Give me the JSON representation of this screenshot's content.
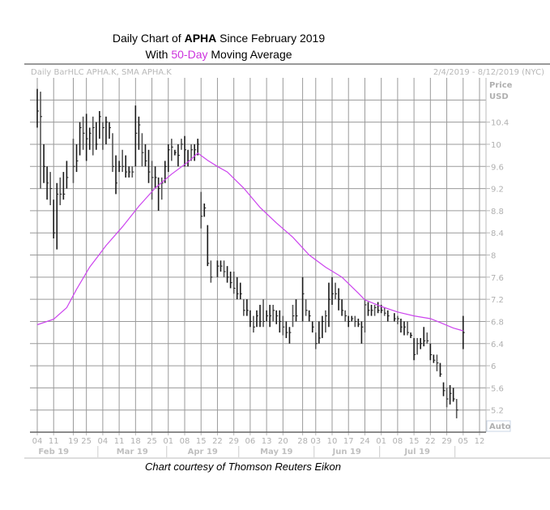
{
  "title": {
    "line1_prefix": "Daily Chart of ",
    "line1_bold": "APHA",
    "line1_suffix": " Since February 2019",
    "line2_prefix": "With ",
    "line2_highlight": "50-Day",
    "line2_suffix": " Moving Average"
  },
  "caption": "Chart courtesy of Thomson Reuters Eikon",
  "colors": {
    "bars": "#1a1a1a",
    "sma": "#cc44ee",
    "grid": "#a0a0a0",
    "axis_text": "#b0b0b0",
    "title_highlight": "#cc33dd"
  },
  "chart_data": {
    "type": "bar-hlc",
    "header_left": "Daily BarHLC APHA.K, SMA APHA.K",
    "header_right": "2/4/2019 - 8/12/2019 (NYC)",
    "ylabel_line1": "Price",
    "ylabel_line2": "USD",
    "auto_label": "Auto",
    "ylim": [
      4.8,
      11.2
    ],
    "yticks": [
      "10.4",
      "10",
      "9.6",
      "9.2",
      "8.8",
      "8.4",
      "8",
      "7.6",
      "7.2",
      "6.8",
      "6.4",
      "6",
      "5.6",
      "5.2"
    ],
    "grid": true,
    "xticks": [
      {
        "date": "2019-02-04",
        "label": "04"
      },
      {
        "date": "2019-02-11",
        "label": "11"
      },
      {
        "date": "2019-02-19",
        "label": "19"
      },
      {
        "date": "2019-02-25",
        "label": "25"
      },
      {
        "date": "2019-03-04",
        "label": "04"
      },
      {
        "date": "2019-03-11",
        "label": "11"
      },
      {
        "date": "2019-03-18",
        "label": "18"
      },
      {
        "date": "2019-03-25",
        "label": "25"
      },
      {
        "date": "2019-04-01",
        "label": "01"
      },
      {
        "date": "2019-04-08",
        "label": "08"
      },
      {
        "date": "2019-04-15",
        "label": "15"
      },
      {
        "date": "2019-04-22",
        "label": "22"
      },
      {
        "date": "2019-04-29",
        "label": "29"
      },
      {
        "date": "2019-05-06",
        "label": "06"
      },
      {
        "date": "2019-05-13",
        "label": "13"
      },
      {
        "date": "2019-05-20",
        "label": "20"
      },
      {
        "date": "2019-05-28",
        "label": "28"
      },
      {
        "date": "2019-06-03",
        "label": "03"
      },
      {
        "date": "2019-06-10",
        "label": "10"
      },
      {
        "date": "2019-06-17",
        "label": "17"
      },
      {
        "date": "2019-06-24",
        "label": "24"
      },
      {
        "date": "2019-07-01",
        "label": "01"
      },
      {
        "date": "2019-07-08",
        "label": "08"
      },
      {
        "date": "2019-07-15",
        "label": "15"
      },
      {
        "date": "2019-07-22",
        "label": "22"
      },
      {
        "date": "2019-07-29",
        "label": "29"
      },
      {
        "date": "2019-08-05",
        "label": "05"
      },
      {
        "date": "2019-08-12",
        "label": "12"
      }
    ],
    "months": [
      {
        "label": "Feb 19",
        "start": "2019-02-01",
        "end": "2019-03-01"
      },
      {
        "label": "Mar 19",
        "start": "2019-03-01",
        "end": "2019-04-01"
      },
      {
        "label": "Apr 19",
        "start": "2019-04-01",
        "end": "2019-05-01"
      },
      {
        "label": "May 19",
        "start": "2019-05-01",
        "end": "2019-06-03"
      },
      {
        "label": "Jun 19",
        "start": "2019-06-03",
        "end": "2019-07-01"
      },
      {
        "label": "Jul 19",
        "start": "2019-07-01",
        "end": "2019-08-01"
      }
    ],
    "series": [
      {
        "kind": "hlc",
        "fields": [
          "date",
          "high",
          "low",
          "close"
        ],
        "values": [
          [
            "2019-02-04",
            11.0,
            10.3,
            10.6
          ],
          [
            "2019-02-05",
            10.95,
            9.2,
            10.5
          ],
          [
            "2019-02-06",
            10.0,
            9.3,
            9.6
          ],
          [
            "2019-02-07",
            9.6,
            9.0,
            9.3
          ],
          [
            "2019-02-08",
            9.5,
            8.9,
            9.2
          ],
          [
            "2019-02-11",
            9.0,
            8.3,
            8.4
          ],
          [
            "2019-02-12",
            9.3,
            8.1,
            9.1
          ],
          [
            "2019-02-13",
            9.4,
            8.9,
            9.1
          ],
          [
            "2019-02-14",
            9.5,
            9.0,
            9.1
          ],
          [
            "2019-02-15",
            9.7,
            9.2,
            9.4
          ],
          [
            "2019-02-19",
            10.1,
            9.3,
            9.6
          ],
          [
            "2019-02-20",
            10.0,
            9.5,
            9.7
          ],
          [
            "2019-02-21",
            10.4,
            9.8,
            10.3
          ],
          [
            "2019-02-22",
            10.5,
            9.9,
            10.2
          ],
          [
            "2019-02-25",
            10.55,
            9.7,
            10.1
          ],
          [
            "2019-02-26",
            10.3,
            9.9,
            10.2
          ],
          [
            "2019-02-27",
            10.5,
            9.8,
            10.3
          ],
          [
            "2019-02-28",
            10.4,
            9.9,
            10.0
          ],
          [
            "2019-03-01",
            10.6,
            10.1,
            10.5
          ],
          [
            "2019-03-04",
            10.4,
            9.9,
            10.3
          ],
          [
            "2019-03-05",
            10.5,
            10.0,
            10.4
          ],
          [
            "2019-03-06",
            10.4,
            10.1,
            10.3
          ],
          [
            "2019-03-07",
            10.2,
            9.5,
            9.6
          ],
          [
            "2019-03-08",
            9.8,
            9.1,
            9.3
          ],
          [
            "2019-03-11",
            9.7,
            9.5,
            9.6
          ],
          [
            "2019-03-12",
            9.9,
            9.5,
            9.6
          ],
          [
            "2019-03-13",
            9.8,
            9.4,
            9.5
          ],
          [
            "2019-03-14",
            9.6,
            9.4,
            9.5
          ],
          [
            "2019-03-15",
            9.6,
            9.4,
            9.5
          ],
          [
            "2019-03-18",
            10.7,
            9.6,
            10.2
          ],
          [
            "2019-03-19",
            10.5,
            9.9,
            10.35
          ],
          [
            "2019-03-20",
            10.2,
            9.6,
            9.85
          ],
          [
            "2019-03-21",
            10.0,
            9.6,
            9.7
          ],
          [
            "2019-03-22",
            9.9,
            9.3,
            9.5
          ],
          [
            "2019-03-25",
            9.7,
            9.0,
            9.4
          ],
          [
            "2019-03-26",
            9.6,
            9.2,
            9.4
          ],
          [
            "2019-03-27",
            9.4,
            8.8,
            9.2
          ],
          [
            "2019-03-28",
            9.4,
            9.0,
            9.3
          ],
          [
            "2019-03-29",
            9.7,
            9.3,
            9.6
          ],
          [
            "2019-04-01",
            10.0,
            9.5,
            9.9
          ],
          [
            "2019-04-02",
            10.1,
            9.7,
            9.95
          ],
          [
            "2019-04-03",
            9.9,
            9.8,
            9.85
          ],
          [
            "2019-04-04",
            10.0,
            9.6,
            9.8
          ],
          [
            "2019-04-05",
            10.1,
            9.9,
            10.0
          ],
          [
            "2019-04-08",
            10.15,
            9.6,
            9.9
          ],
          [
            "2019-04-09",
            9.9,
            9.6,
            9.7
          ],
          [
            "2019-04-10",
            10.0,
            9.7,
            9.9
          ],
          [
            "2019-04-11",
            10.0,
            9.7,
            9.9
          ],
          [
            "2019-04-12",
            10.1,
            9.8,
            10.0
          ],
          [
            "2019-04-15",
            9.14,
            8.48,
            8.7
          ],
          [
            "2019-04-16",
            8.93,
            8.69,
            8.85
          ],
          [
            "2019-04-17",
            8.54,
            7.8,
            7.85
          ],
          [
            "2019-04-18",
            7.9,
            7.5,
            7.6
          ],
          [
            "2019-04-22",
            7.9,
            7.6,
            7.8
          ],
          [
            "2019-04-23",
            7.9,
            7.7,
            7.8
          ],
          [
            "2019-04-24",
            7.9,
            7.6,
            7.7
          ],
          [
            "2019-04-25",
            7.8,
            7.5,
            7.6
          ],
          [
            "2019-04-26",
            7.7,
            7.4,
            7.5
          ],
          [
            "2019-04-29",
            7.7,
            7.3,
            7.4
          ],
          [
            "2019-04-30",
            7.6,
            7.2,
            7.3
          ],
          [
            "2019-05-01",
            7.5,
            7.2,
            7.3
          ],
          [
            "2019-05-02",
            7.2,
            6.9,
            7.0
          ],
          [
            "2019-05-03",
            7.2,
            6.9,
            7.0
          ],
          [
            "2019-05-06",
            7.0,
            6.7,
            6.8
          ],
          [
            "2019-05-07",
            6.9,
            6.6,
            6.7
          ],
          [
            "2019-05-08",
            7.0,
            6.7,
            6.9
          ],
          [
            "2019-05-09",
            7.1,
            6.7,
            6.8
          ],
          [
            "2019-05-10",
            7.2,
            6.7,
            6.8
          ],
          [
            "2019-05-13",
            7.0,
            6.8,
            6.9
          ],
          [
            "2019-05-14",
            7.1,
            6.7,
            6.9
          ],
          [
            "2019-05-15",
            7.1,
            6.8,
            7.0
          ],
          [
            "2019-05-16",
            7.0,
            6.75,
            6.9
          ],
          [
            "2019-05-17",
            7.0,
            6.6,
            6.8
          ],
          [
            "2019-05-20",
            6.9,
            6.55,
            6.7
          ],
          [
            "2019-05-21",
            6.8,
            6.5,
            6.6
          ],
          [
            "2019-05-22",
            6.7,
            6.4,
            6.6
          ],
          [
            "2019-05-23",
            7.1,
            6.7,
            6.9
          ],
          [
            "2019-05-24",
            7.2,
            6.8,
            6.9
          ],
          [
            "2019-05-28",
            7.6,
            6.8,
            7.3
          ],
          [
            "2019-05-29",
            7.2,
            6.9,
            7.0
          ],
          [
            "2019-05-30",
            7.0,
            6.8,
            6.9
          ],
          [
            "2019-05-31",
            6.8,
            6.6,
            6.7
          ],
          [
            "2019-06-03",
            6.6,
            6.3,
            6.4
          ],
          [
            "2019-06-04",
            6.8,
            6.4,
            6.5
          ],
          [
            "2019-06-05",
            6.9,
            6.5,
            6.8
          ],
          [
            "2019-06-06",
            7.0,
            6.6,
            6.9
          ],
          [
            "2019-06-07",
            7.5,
            6.7,
            7.2
          ],
          [
            "2019-06-10",
            7.6,
            7.1,
            7.3
          ],
          [
            "2019-06-11",
            7.5,
            7.2,
            7.3
          ],
          [
            "2019-06-12",
            7.4,
            7.0,
            7.2
          ],
          [
            "2019-06-13",
            7.2,
            6.9,
            7.0
          ],
          [
            "2019-06-14",
            7.0,
            6.8,
            6.9
          ],
          [
            "2019-06-17",
            6.9,
            6.7,
            6.8
          ],
          [
            "2019-06-18",
            6.9,
            6.8,
            6.85
          ],
          [
            "2019-06-19",
            6.9,
            6.7,
            6.8
          ],
          [
            "2019-06-20",
            6.85,
            6.7,
            6.75
          ],
          [
            "2019-06-21",
            6.8,
            6.4,
            6.7
          ],
          [
            "2019-06-24",
            7.2,
            6.6,
            7.1
          ],
          [
            "2019-06-25",
            7.15,
            6.9,
            7.0
          ],
          [
            "2019-06-26",
            7.1,
            6.9,
            7.0
          ],
          [
            "2019-06-27",
            7.1,
            6.9,
            7.05
          ],
          [
            "2019-06-28",
            7.15,
            6.95,
            7.0
          ],
          [
            "2019-07-01",
            7.1,
            6.95,
            7.0
          ],
          [
            "2019-07-02",
            7.05,
            6.9,
            6.95
          ],
          [
            "2019-07-03",
            7.0,
            6.8,
            6.9
          ],
          [
            "2019-07-05",
            6.95,
            6.8,
            6.85
          ],
          [
            "2019-07-08",
            6.9,
            6.75,
            6.85
          ],
          [
            "2019-07-09",
            6.85,
            6.6,
            6.7
          ],
          [
            "2019-07-10",
            6.8,
            6.55,
            6.7
          ],
          [
            "2019-07-11",
            6.8,
            6.55,
            6.6
          ],
          [
            "2019-07-12",
            6.6,
            6.5,
            6.55
          ],
          [
            "2019-07-15",
            6.5,
            6.1,
            6.2
          ],
          [
            "2019-07-16",
            6.5,
            6.2,
            6.4
          ],
          [
            "2019-07-17",
            6.5,
            6.3,
            6.4
          ],
          [
            "2019-07-18",
            6.7,
            6.35,
            6.45
          ],
          [
            "2019-07-19",
            6.6,
            6.4,
            6.45
          ],
          [
            "2019-07-22",
            6.4,
            6.1,
            6.2
          ],
          [
            "2019-07-23",
            6.2,
            6.05,
            6.1
          ],
          [
            "2019-07-24",
            6.2,
            5.9,
            6.05
          ],
          [
            "2019-07-25",
            6.05,
            5.8,
            5.85
          ],
          [
            "2019-07-26",
            5.7,
            5.45,
            5.55
          ],
          [
            "2019-07-29",
            5.6,
            5.25,
            5.4
          ],
          [
            "2019-07-30",
            5.65,
            5.3,
            5.5
          ],
          [
            "2019-07-31",
            5.6,
            5.35,
            5.4
          ],
          [
            "2019-08-01",
            5.4,
            5.05,
            5.2
          ],
          [
            "2019-08-05",
            6.9,
            6.3,
            6.6
          ]
        ]
      },
      {
        "kind": "sma",
        "period": 50,
        "fields": [
          "date",
          "value"
        ],
        "values": [
          [
            "2019-02-04",
            6.74
          ],
          [
            "2019-02-11",
            6.84
          ],
          [
            "2019-02-15",
            7.05
          ],
          [
            "2019-02-20",
            7.38
          ],
          [
            "2019-02-26",
            7.78
          ],
          [
            "2019-03-05",
            8.17
          ],
          [
            "2019-03-12",
            8.51
          ],
          [
            "2019-03-19",
            8.88
          ],
          [
            "2019-03-26",
            9.21
          ],
          [
            "2019-04-02",
            9.46
          ],
          [
            "2019-04-09",
            9.68
          ],
          [
            "2019-04-12",
            9.84
          ],
          [
            "2019-04-17",
            9.71
          ],
          [
            "2019-04-22",
            9.6
          ],
          [
            "2019-04-25",
            9.5
          ],
          [
            "2019-05-02",
            9.21
          ],
          [
            "2019-05-09",
            8.86
          ],
          [
            "2019-05-16",
            8.58
          ],
          [
            "2019-05-23",
            8.32
          ],
          [
            "2019-05-30",
            8.0
          ],
          [
            "2019-06-06",
            7.78
          ],
          [
            "2019-06-13",
            7.6
          ],
          [
            "2019-06-20",
            7.31
          ],
          [
            "2019-06-24",
            7.19
          ],
          [
            "2019-07-01",
            7.07
          ],
          [
            "2019-07-08",
            6.97
          ],
          [
            "2019-07-15",
            6.9
          ],
          [
            "2019-07-22",
            6.85
          ],
          [
            "2019-07-25",
            6.78
          ],
          [
            "2019-07-31",
            6.68
          ],
          [
            "2019-08-05",
            6.63
          ]
        ]
      }
    ]
  }
}
